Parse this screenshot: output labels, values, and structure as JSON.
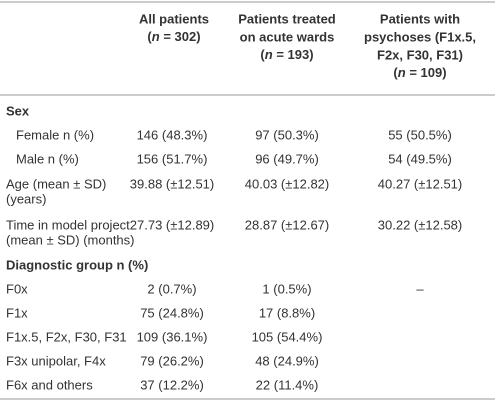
{
  "table": {
    "header": [
      [
        "All patients",
        {
          "pre": "(",
          "italic": "n",
          "post": " = 302)"
        }
      ],
      [
        "Patients treated",
        "on acute wards",
        {
          "pre": "(",
          "italic": "n",
          "post": " = 193)"
        }
      ],
      [
        "Patients with",
        "psychoses (F1x.5,",
        "F2x, F30, F31)",
        {
          "pre": "(",
          "italic": "n",
          "post": " = 109)"
        }
      ]
    ],
    "rows": [
      {
        "section": "Sex"
      },
      {
        "label": [
          "Female n (%)"
        ],
        "indent": true,
        "cells": [
          "146 (48.3%)",
          "97 (50.3%)",
          "55 (50.5%)"
        ]
      },
      {
        "label": [
          "Male n (%)"
        ],
        "indent": true,
        "cells": [
          "156 (51.7%)",
          "96 (49.7%)",
          "54 (49.5%)"
        ]
      },
      {
        "label": [
          "Age (mean ± SD)",
          "(years)"
        ],
        "cells": [
          "39.88 (±12.51)",
          "40.03 (±12.82)",
          "40.27 (±12.51)"
        ]
      },
      {
        "label": [
          "Time in model project",
          "(mean ± SD) (months)"
        ],
        "cells": [
          "27.73 (±12.89)",
          "28.87 (±12.67)",
          "30.22 (±12.58)"
        ]
      },
      {
        "section": "Diagnostic group n (%)"
      },
      {
        "label": [
          "F0x"
        ],
        "cells": [
          "2 (0.7%)",
          "1 (0.5%)",
          "–"
        ]
      },
      {
        "label": [
          "F1x"
        ],
        "cells": [
          "75 (24.8%)",
          "17 (8.8%)",
          ""
        ]
      },
      {
        "label": [
          "F1x.5, F2x, F30, F31"
        ],
        "cells": [
          "109 (36.1%)",
          "105 (54.4%)",
          ""
        ]
      },
      {
        "label": [
          "F3x unipolar, F4x"
        ],
        "cells": [
          "79 (26.2%)",
          "48 (24.9%)",
          ""
        ]
      },
      {
        "label": [
          "F6x and others"
        ],
        "cells": [
          "37 (12.2%)",
          "22 (11.4%)",
          ""
        ]
      }
    ]
  }
}
